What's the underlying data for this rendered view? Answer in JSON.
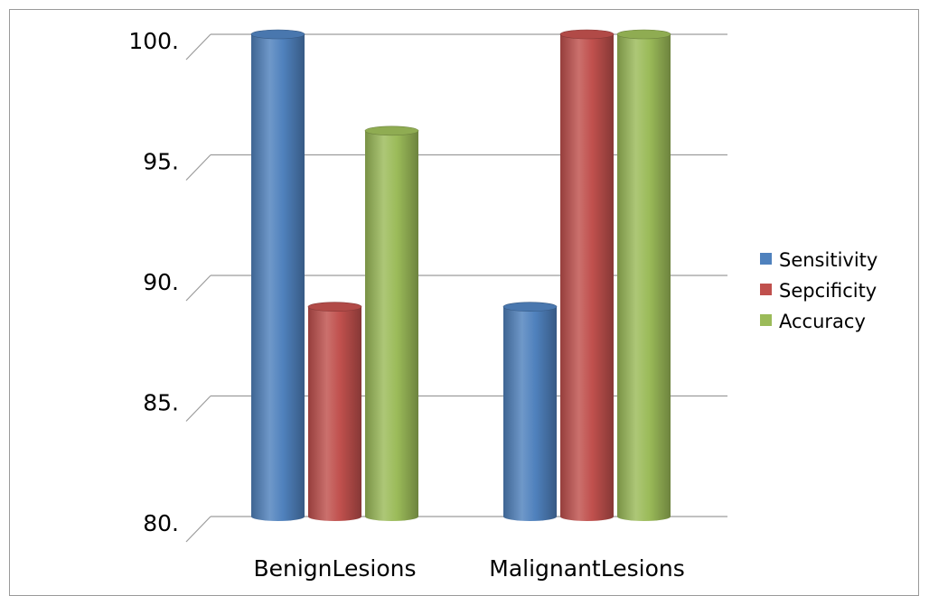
{
  "chart_data": {
    "type": "bar",
    "style": "3d-cylinder",
    "categories": [
      "BenignLesions",
      "MalignantLesions"
    ],
    "series": [
      {
        "name": "Sensitivity",
        "values": [
          100,
          88.7
        ],
        "color": "#4f81bd"
      },
      {
        "name": "Sepcificity",
        "values": [
          88.7,
          100
        ],
        "color": "#c0504d"
      },
      {
        "name": "Accuracy",
        "values": [
          96,
          100
        ],
        "color": "#9bbb59"
      }
    ],
    "ylim": [
      80,
      100
    ],
    "yticks": [
      80,
      85,
      90,
      95,
      100
    ],
    "ytick_labels": [
      "80.",
      "85.",
      "90.",
      "95.",
      "100."
    ],
    "title": "",
    "xlabel": "",
    "ylabel": "",
    "grid": true,
    "legend_position": "right"
  }
}
